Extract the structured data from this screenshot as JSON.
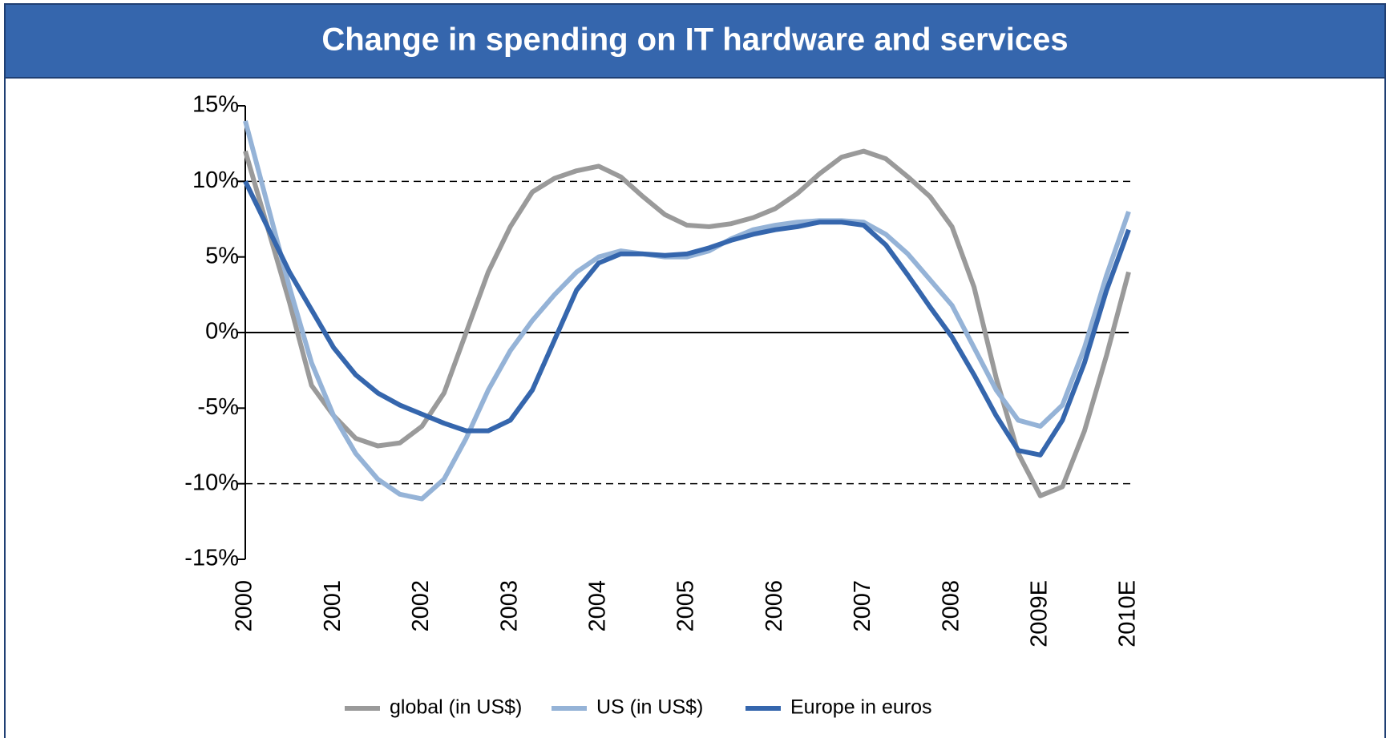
{
  "chart_data": {
    "type": "line",
    "title": "Change in spending on IT hardware and services",
    "x": [
      2000,
      2000.25,
      2000.5,
      2000.75,
      2001,
      2001.25,
      2001.5,
      2001.75,
      2002,
      2002.25,
      2002.5,
      2002.75,
      2003,
      2003.25,
      2003.5,
      2003.75,
      2004,
      2004.25,
      2004.5,
      2004.75,
      2005,
      2005.25,
      2005.5,
      2005.75,
      2006,
      2006.25,
      2006.5,
      2006.75,
      2007,
      2007.25,
      2007.5,
      2007.75,
      2008,
      2008.25,
      2008.5,
      2008.75,
      2009,
      2009.25,
      2009.5,
      2009.75,
      2010
    ],
    "series": [
      {
        "name": "global (in US$)",
        "color": "#9a9a9a",
        "values": [
          12,
          7,
          2,
          -3.5,
          -5.5,
          -7,
          -7.5,
          -7.3,
          -6.2,
          -4,
          0,
          4,
          7,
          9.3,
          10.2,
          10.7,
          11,
          10.3,
          9,
          7.8,
          7.1,
          7,
          7.2,
          7.6,
          8.2,
          9.2,
          10.5,
          11.6,
          12,
          11.5,
          10.3,
          9,
          7,
          3,
          -3,
          -8,
          -10.8,
          -10.2,
          -6.5,
          -1.5,
          4
        ]
      },
      {
        "name": "US (in US$)",
        "color": "#95b3d7",
        "values": [
          14,
          8.5,
          3,
          -2,
          -5.5,
          -8,
          -9.7,
          -10.7,
          -11,
          -9.7,
          -7,
          -3.8,
          -1.2,
          0.8,
          2.5,
          4,
          5,
          5.4,
          5.2,
          5,
          5,
          5.4,
          6.2,
          6.8,
          7.1,
          7.3,
          7.4,
          7.4,
          7.3,
          6.5,
          5.2,
          3.5,
          1.8,
          -1,
          -3.8,
          -5.8,
          -6.2,
          -4.8,
          -1,
          3.8,
          8
        ]
      },
      {
        "name": "Europe in euros",
        "color": "#3566ad",
        "values": [
          10,
          7,
          4,
          1.5,
          -1,
          -2.8,
          -4,
          -4.8,
          -5.4,
          -6,
          -6.5,
          -6.5,
          -5.8,
          -3.8,
          -0.5,
          2.8,
          4.6,
          5.2,
          5.2,
          5.1,
          5.2,
          5.6,
          6.1,
          6.5,
          6.8,
          7,
          7.3,
          7.3,
          7.1,
          5.8,
          3.8,
          1.7,
          -0.3,
          -2.8,
          -5.5,
          -7.8,
          -8.1,
          -5.8,
          -2,
          2.8,
          6.8
        ]
      }
    ],
    "xlim": [
      2000,
      2010
    ],
    "xticks": [
      2000,
      2001,
      2002,
      2003,
      2004,
      2005,
      2006,
      2007,
      2008,
      {
        "value": 2009,
        "label": "2009E"
      },
      {
        "value": 2010,
        "label": "2010E"
      }
    ],
    "ylim": [
      -15,
      15
    ],
    "yticks": [
      {
        "value": -15,
        "label": "-15%"
      },
      {
        "value": -10,
        "label": "-10%"
      },
      {
        "value": -5,
        "label": "-5%"
      },
      {
        "value": 0,
        "label": "0%"
      },
      {
        "value": 5,
        "label": "5%"
      },
      {
        "value": 10,
        "label": "10%"
      },
      {
        "value": 15,
        "label": "15%"
      }
    ],
    "dashed_lines": [
      -10,
      10
    ],
    "legend": "bottom"
  }
}
